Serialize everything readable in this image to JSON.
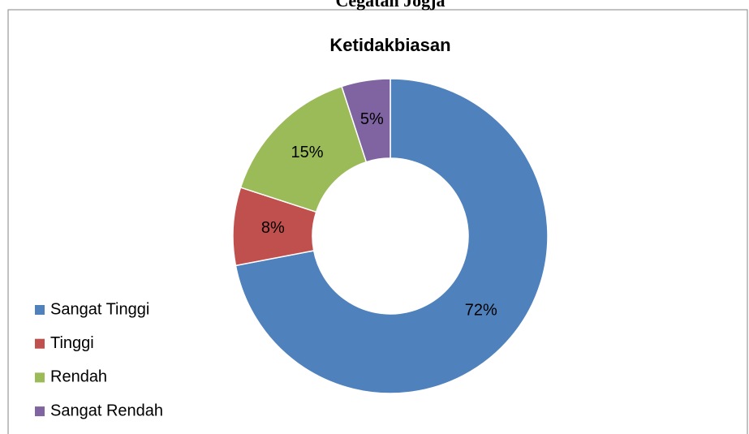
{
  "heading": "Cegatan Jogja",
  "chart_data": {
    "type": "donut",
    "title": "Ketidakbiasan",
    "categories": [
      "Sangat Tinggi",
      "Tinggi",
      "Rendah",
      "Sangat Rendah"
    ],
    "values": [
      72,
      8,
      15,
      5
    ],
    "value_labels": [
      "72%",
      "8%",
      "15%",
      "5%"
    ],
    "colors": [
      "#4f81bd",
      "#c0504d",
      "#9bbb59",
      "#8064a2"
    ],
    "legend": "left"
  }
}
